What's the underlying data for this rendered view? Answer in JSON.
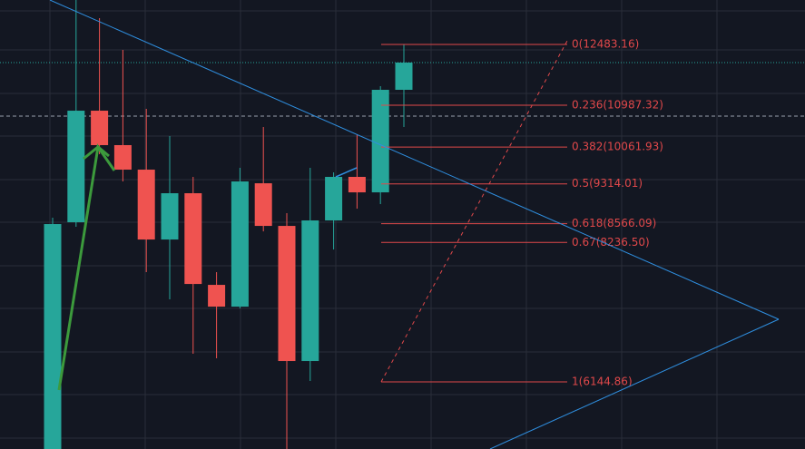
{
  "chart_data": {
    "type": "candlestick",
    "log": true,
    "ylim": [
      5337,
      13705
    ],
    "up_color": "#26a69a",
    "down_color": "#ef5350",
    "fib_color": "#e0484a",
    "candles": [
      {
        "open": 5300,
        "high": 8675,
        "low": 5300,
        "close": 8560
      },
      {
        "open": 8593,
        "high": 13705,
        "low": 8511,
        "close": 10862
      },
      {
        "open": 10862,
        "high": 13192,
        "low": 9913,
        "close": 10104
      },
      {
        "open": 10104,
        "high": 12341,
        "low": 9362,
        "close": 9597
      },
      {
        "open": 9597,
        "high": 10904,
        "low": 7738,
        "close": 8287
      },
      {
        "open": 8287,
        "high": 10298,
        "low": 7308,
        "close": 9133
      },
      {
        "open": 9133,
        "high": 9452,
        "low": 6519,
        "close": 7548
      },
      {
        "open": 7534,
        "high": 7738,
        "low": 6457,
        "close": 7197
      },
      {
        "open": 7197,
        "high": 9634,
        "low": 7170,
        "close": 9362
      },
      {
        "open": 9326,
        "high": 10496,
        "low": 8430,
        "close": 8527
      },
      {
        "open": 8527,
        "high": 8758,
        "low": 5337,
        "close": 6420
      },
      {
        "open": 6420,
        "high": 9634,
        "low": 6157,
        "close": 8626
      },
      {
        "open": 8626,
        "high": 9542,
        "low": 8115,
        "close": 9452
      },
      {
        "open": 9452,
        "high": 10337,
        "low": 8842,
        "close": 9150
      },
      {
        "open": 9150,
        "high": 11436,
        "low": 8927,
        "close": 11349
      },
      {
        "open": 11349,
        "high": 12483,
        "low": 10496,
        "close": 12016
      }
    ],
    "fib_levels": [
      {
        "price": 12483.16,
        "label": "0(12483.16)"
      },
      {
        "price": 10987.32,
        "label": "0.236(10987.32)"
      },
      {
        "price": 10061.93,
        "label": "0.382(10061.93)"
      },
      {
        "price": 9314.01,
        "label": "0.5(9314.01)"
      },
      {
        "price": 8566.09,
        "label": "0.618(8566.09)"
      },
      {
        "price": 8236.5,
        "label": "0.67(8236.50)"
      },
      {
        "price": 6144.86,
        "label": "1(6144.86)"
      }
    ]
  }
}
